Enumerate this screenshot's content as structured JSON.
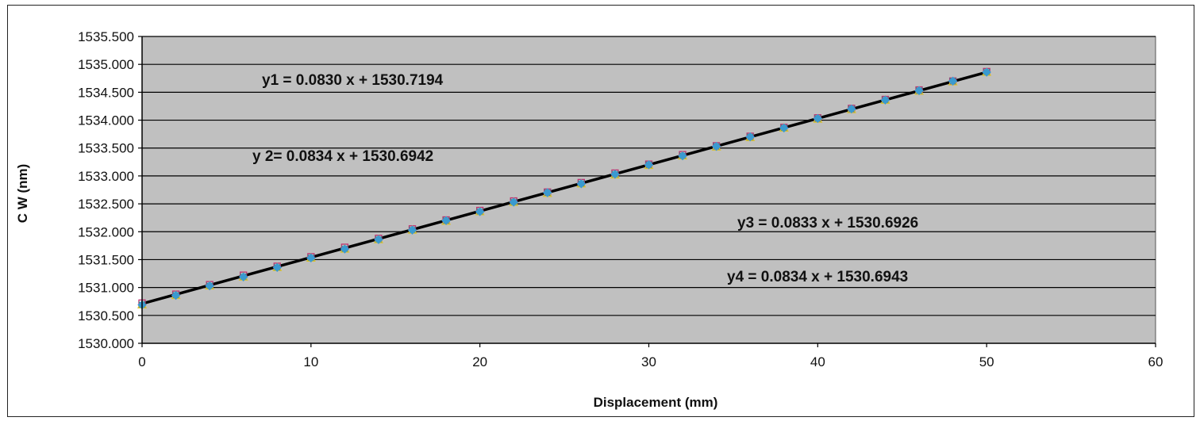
{
  "chart_data": {
    "type": "scatter",
    "title": "",
    "xlabel": "Displacement (mm)",
    "ylabel": "C W (nm)",
    "xlim": [
      0,
      60
    ],
    "ylim": [
      1530.0,
      1535.5
    ],
    "x_ticks": [
      0,
      10,
      20,
      30,
      40,
      50,
      60
    ],
    "y_ticks": [
      "1530.000",
      "1530.500",
      "1531.000",
      "1531.500",
      "1532.000",
      "1532.500",
      "1533.000",
      "1533.500",
      "1534.000",
      "1534.500",
      "1535.000",
      "1535.500"
    ],
    "grid": "horizontal",
    "plot_background": "#c0c0c0",
    "x": [
      0,
      2,
      4,
      6,
      8,
      10,
      12,
      14,
      16,
      18,
      20,
      22,
      24,
      26,
      28,
      30,
      32,
      34,
      36,
      38,
      40,
      42,
      44,
      46,
      48,
      50
    ],
    "series": [
      {
        "equation": "y1 = 0.0830 x + 1530.7194",
        "slope": 0.083,
        "intercept": 1530.7194,
        "color": "#c03070",
        "marker": "square",
        "values": [
          1530.72,
          1530.88,
          1531.05,
          1531.22,
          1531.38,
          1531.55,
          1531.72,
          1531.88,
          1532.05,
          1532.21,
          1532.38,
          1532.55,
          1532.71,
          1532.88,
          1533.05,
          1533.21,
          1533.38,
          1533.54,
          1533.71,
          1533.87,
          1534.04,
          1534.21,
          1534.37,
          1534.54,
          1534.7,
          1534.87
        ]
      },
      {
        "equation": "y 2= 0.0834 x + 1530.6942",
        "slope": 0.0834,
        "intercept": 1530.6942,
        "color": "#2a8a8a",
        "marker": "x",
        "values": [
          1530.69,
          1530.86,
          1531.03,
          1531.19,
          1531.36,
          1531.53,
          1531.69,
          1531.86,
          1532.03,
          1532.2,
          1532.36,
          1532.53,
          1532.7,
          1532.86,
          1533.03,
          1533.2,
          1533.36,
          1533.53,
          1533.7,
          1533.86,
          1534.03,
          1534.2,
          1534.36,
          1534.53,
          1534.7,
          1534.86
        ]
      },
      {
        "equation": "y3 = 0.0833 x + 1530.6926",
        "slope": 0.0833,
        "intercept": 1530.6926,
        "color": "#d9c030",
        "marker": "triangle",
        "values": [
          1530.69,
          1530.86,
          1531.03,
          1531.19,
          1531.36,
          1531.53,
          1531.69,
          1531.86,
          1532.03,
          1532.19,
          1532.36,
          1532.53,
          1532.69,
          1532.86,
          1533.02,
          1533.19,
          1533.36,
          1533.52,
          1533.69,
          1533.86,
          1534.02,
          1534.19,
          1534.36,
          1534.52,
          1534.69,
          1534.86
        ]
      },
      {
        "equation": "y4 = 0.0834 x + 1530.6943",
        "slope": 0.0834,
        "intercept": 1530.6943,
        "color": "#3a9ad0",
        "marker": "diamond",
        "values": [
          1530.69,
          1530.86,
          1531.03,
          1531.19,
          1531.36,
          1531.53,
          1531.69,
          1531.86,
          1532.03,
          1532.2,
          1532.36,
          1532.53,
          1532.7,
          1532.86,
          1533.03,
          1533.2,
          1533.36,
          1533.53,
          1533.7,
          1533.86,
          1534.03,
          1534.2,
          1534.36,
          1534.53,
          1534.7,
          1534.86
        ]
      }
    ],
    "trendline": {
      "color": "#000000",
      "from": [
        0,
        1530.71
      ],
      "to": [
        50,
        1534.86
      ]
    }
  }
}
